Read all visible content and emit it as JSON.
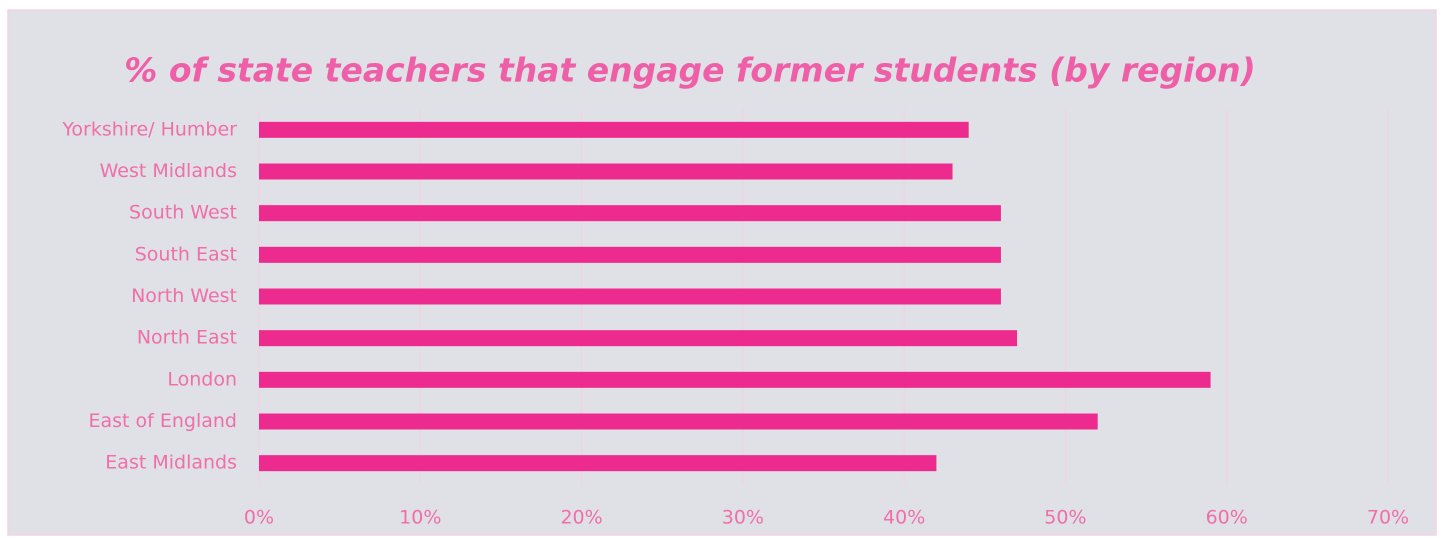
{
  "chart_data": {
    "type": "barh",
    "title": "% of state teachers that engage former students (by region)",
    "categories": [
      "Yorkshire/ Humber",
      "West Midlands",
      "South West",
      "South East",
      "North West",
      "North East",
      "London",
      "East of England",
      "East Midlands"
    ],
    "values": [
      44,
      43,
      46,
      46,
      46,
      47,
      59,
      52,
      42
    ],
    "color": "#ed2a8e",
    "xlim": [
      0,
      70
    ],
    "xticks": [
      {
        "value": 0,
        "label": "0%"
      },
      {
        "value": 10,
        "label": "10%"
      },
      {
        "value": 20,
        "label": "20%"
      },
      {
        "value": 30,
        "label": "30%"
      },
      {
        "value": 40,
        "label": "40%"
      },
      {
        "value": 50,
        "label": "50%"
      },
      {
        "value": 60,
        "label": "60%"
      },
      {
        "value": 70,
        "label": "70%"
      }
    ],
    "grid": true
  }
}
